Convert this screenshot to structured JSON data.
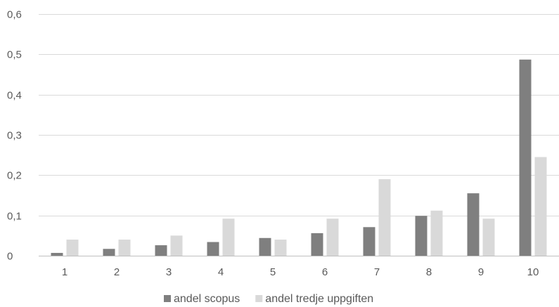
{
  "chart_data": {
    "type": "bar",
    "title": "",
    "xlabel": "",
    "ylabel": "",
    "categories": [
      "1",
      "2",
      "3",
      "4",
      "5",
      "6",
      "7",
      "8",
      "9",
      "10"
    ],
    "ylim": [
      0,
      0.6
    ],
    "y_ticks": [
      0,
      0.1,
      0.2,
      0.3,
      0.4,
      0.5,
      0.6
    ],
    "y_tick_labels": [
      "0",
      "0,1",
      "0,2",
      "0,3",
      "0,4",
      "0,5",
      "0,6"
    ],
    "grid": true,
    "legend_position": "bottom",
    "series": [
      {
        "name": "andel scopus",
        "color": "#7f7f7f",
        "values": [
          0.007,
          0.017,
          0.026,
          0.034,
          0.044,
          0.056,
          0.071,
          0.099,
          0.155,
          0.487
        ]
      },
      {
        "name": "andel tredje uppgiften",
        "color": "#d9d9d9",
        "values": [
          0.04,
          0.04,
          0.05,
          0.092,
          0.04,
          0.092,
          0.19,
          0.112,
          0.092,
          0.245
        ]
      }
    ]
  }
}
